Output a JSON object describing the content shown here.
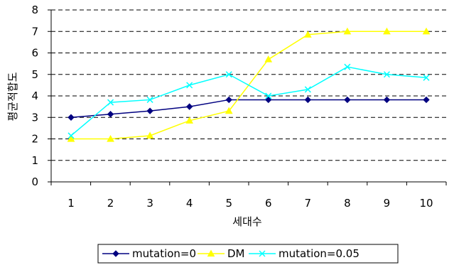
{
  "chart_data": {
    "type": "line",
    "xlabel": "세대수",
    "ylabel": "평균적합도",
    "x": [
      1,
      2,
      3,
      4,
      5,
      6,
      7,
      8,
      9,
      10
    ],
    "ylim": [
      0,
      8
    ],
    "yticks": [
      0,
      1,
      2,
      3,
      4,
      5,
      6,
      7,
      8
    ],
    "grid": "horizontal dashed",
    "legend_position": "bottom",
    "series": [
      {
        "name": "mutation=0",
        "color": "#000080",
        "marker": "diamond",
        "values": [
          3.0,
          3.15,
          3.3,
          3.5,
          3.82,
          3.82,
          3.82,
          3.82,
          3.82,
          3.82
        ]
      },
      {
        "name": "DM",
        "color": "#ffff00",
        "marker": "triangle",
        "values": [
          2.0,
          2.0,
          2.15,
          2.85,
          3.3,
          5.7,
          6.85,
          7.0,
          7.0,
          7.0
        ]
      },
      {
        "name": "mutation=0.05",
        "color": "#00ffff",
        "marker": "x",
        "values": [
          2.15,
          3.7,
          3.82,
          4.5,
          5.0,
          4.0,
          4.3,
          5.35,
          5.0,
          4.85
        ]
      }
    ]
  }
}
